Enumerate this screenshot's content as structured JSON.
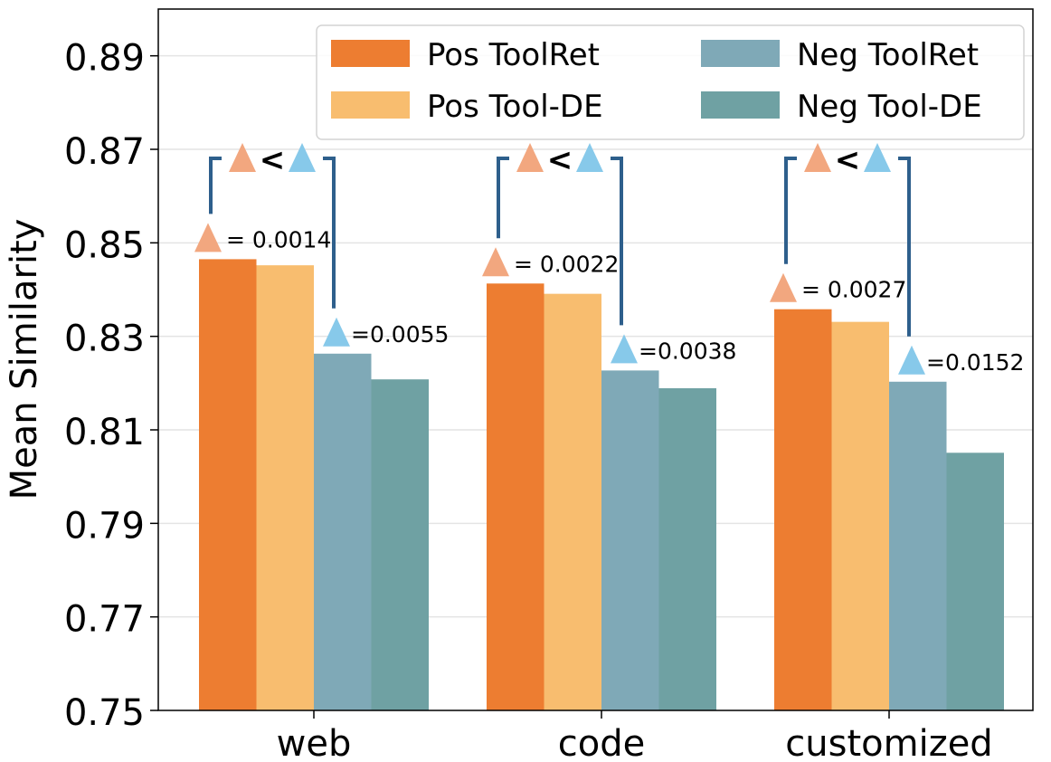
{
  "chart_data": {
    "type": "bar",
    "ylabel": "Mean Similarity",
    "xlabel": "",
    "ylim": [
      0.75,
      0.9
    ],
    "yticks": [
      0.75,
      0.77,
      0.79,
      0.81,
      0.83,
      0.85,
      0.87,
      0.89
    ],
    "ytick_labels": [
      "0.75",
      "0.77",
      "0.79",
      "0.81",
      "0.83",
      "0.85",
      "0.87",
      "0.89"
    ],
    "grid": true,
    "categories": [
      "web",
      "code",
      "customized"
    ],
    "series": [
      {
        "name": "Pos ToolRet",
        "color": "#ED7D31",
        "values": [
          0.8465,
          0.8413,
          0.8358
        ]
      },
      {
        "name": "Pos Tool-DE",
        "color": "#F8BD6F",
        "values": [
          0.8452,
          0.8391,
          0.8331
        ]
      },
      {
        "name": "Neg ToolRet",
        "color": "#7FA9B7",
        "values": [
          0.8263,
          0.8227,
          0.8203
        ]
      },
      {
        "name": "Neg Tool-DE",
        "color": "#6FA1A3",
        "values": [
          0.8208,
          0.8189,
          0.8051
        ]
      }
    ],
    "legend_position": "top-right",
    "annotations": {
      "pos_color": "#F2A77F",
      "neg_color": "#87C9EA",
      "bracket_color": "#2E5F8C",
      "comparison_symbol": "<",
      "groups": [
        {
          "category": "web",
          "pos_delta": "= 0.0014",
          "neg_delta": "=0.0055"
        },
        {
          "category": "code",
          "pos_delta": "= 0.0022",
          "neg_delta": "=0.0038"
        },
        {
          "category": "customized",
          "pos_delta": "= 0.0027",
          "neg_delta": "=0.0152"
        }
      ]
    }
  }
}
